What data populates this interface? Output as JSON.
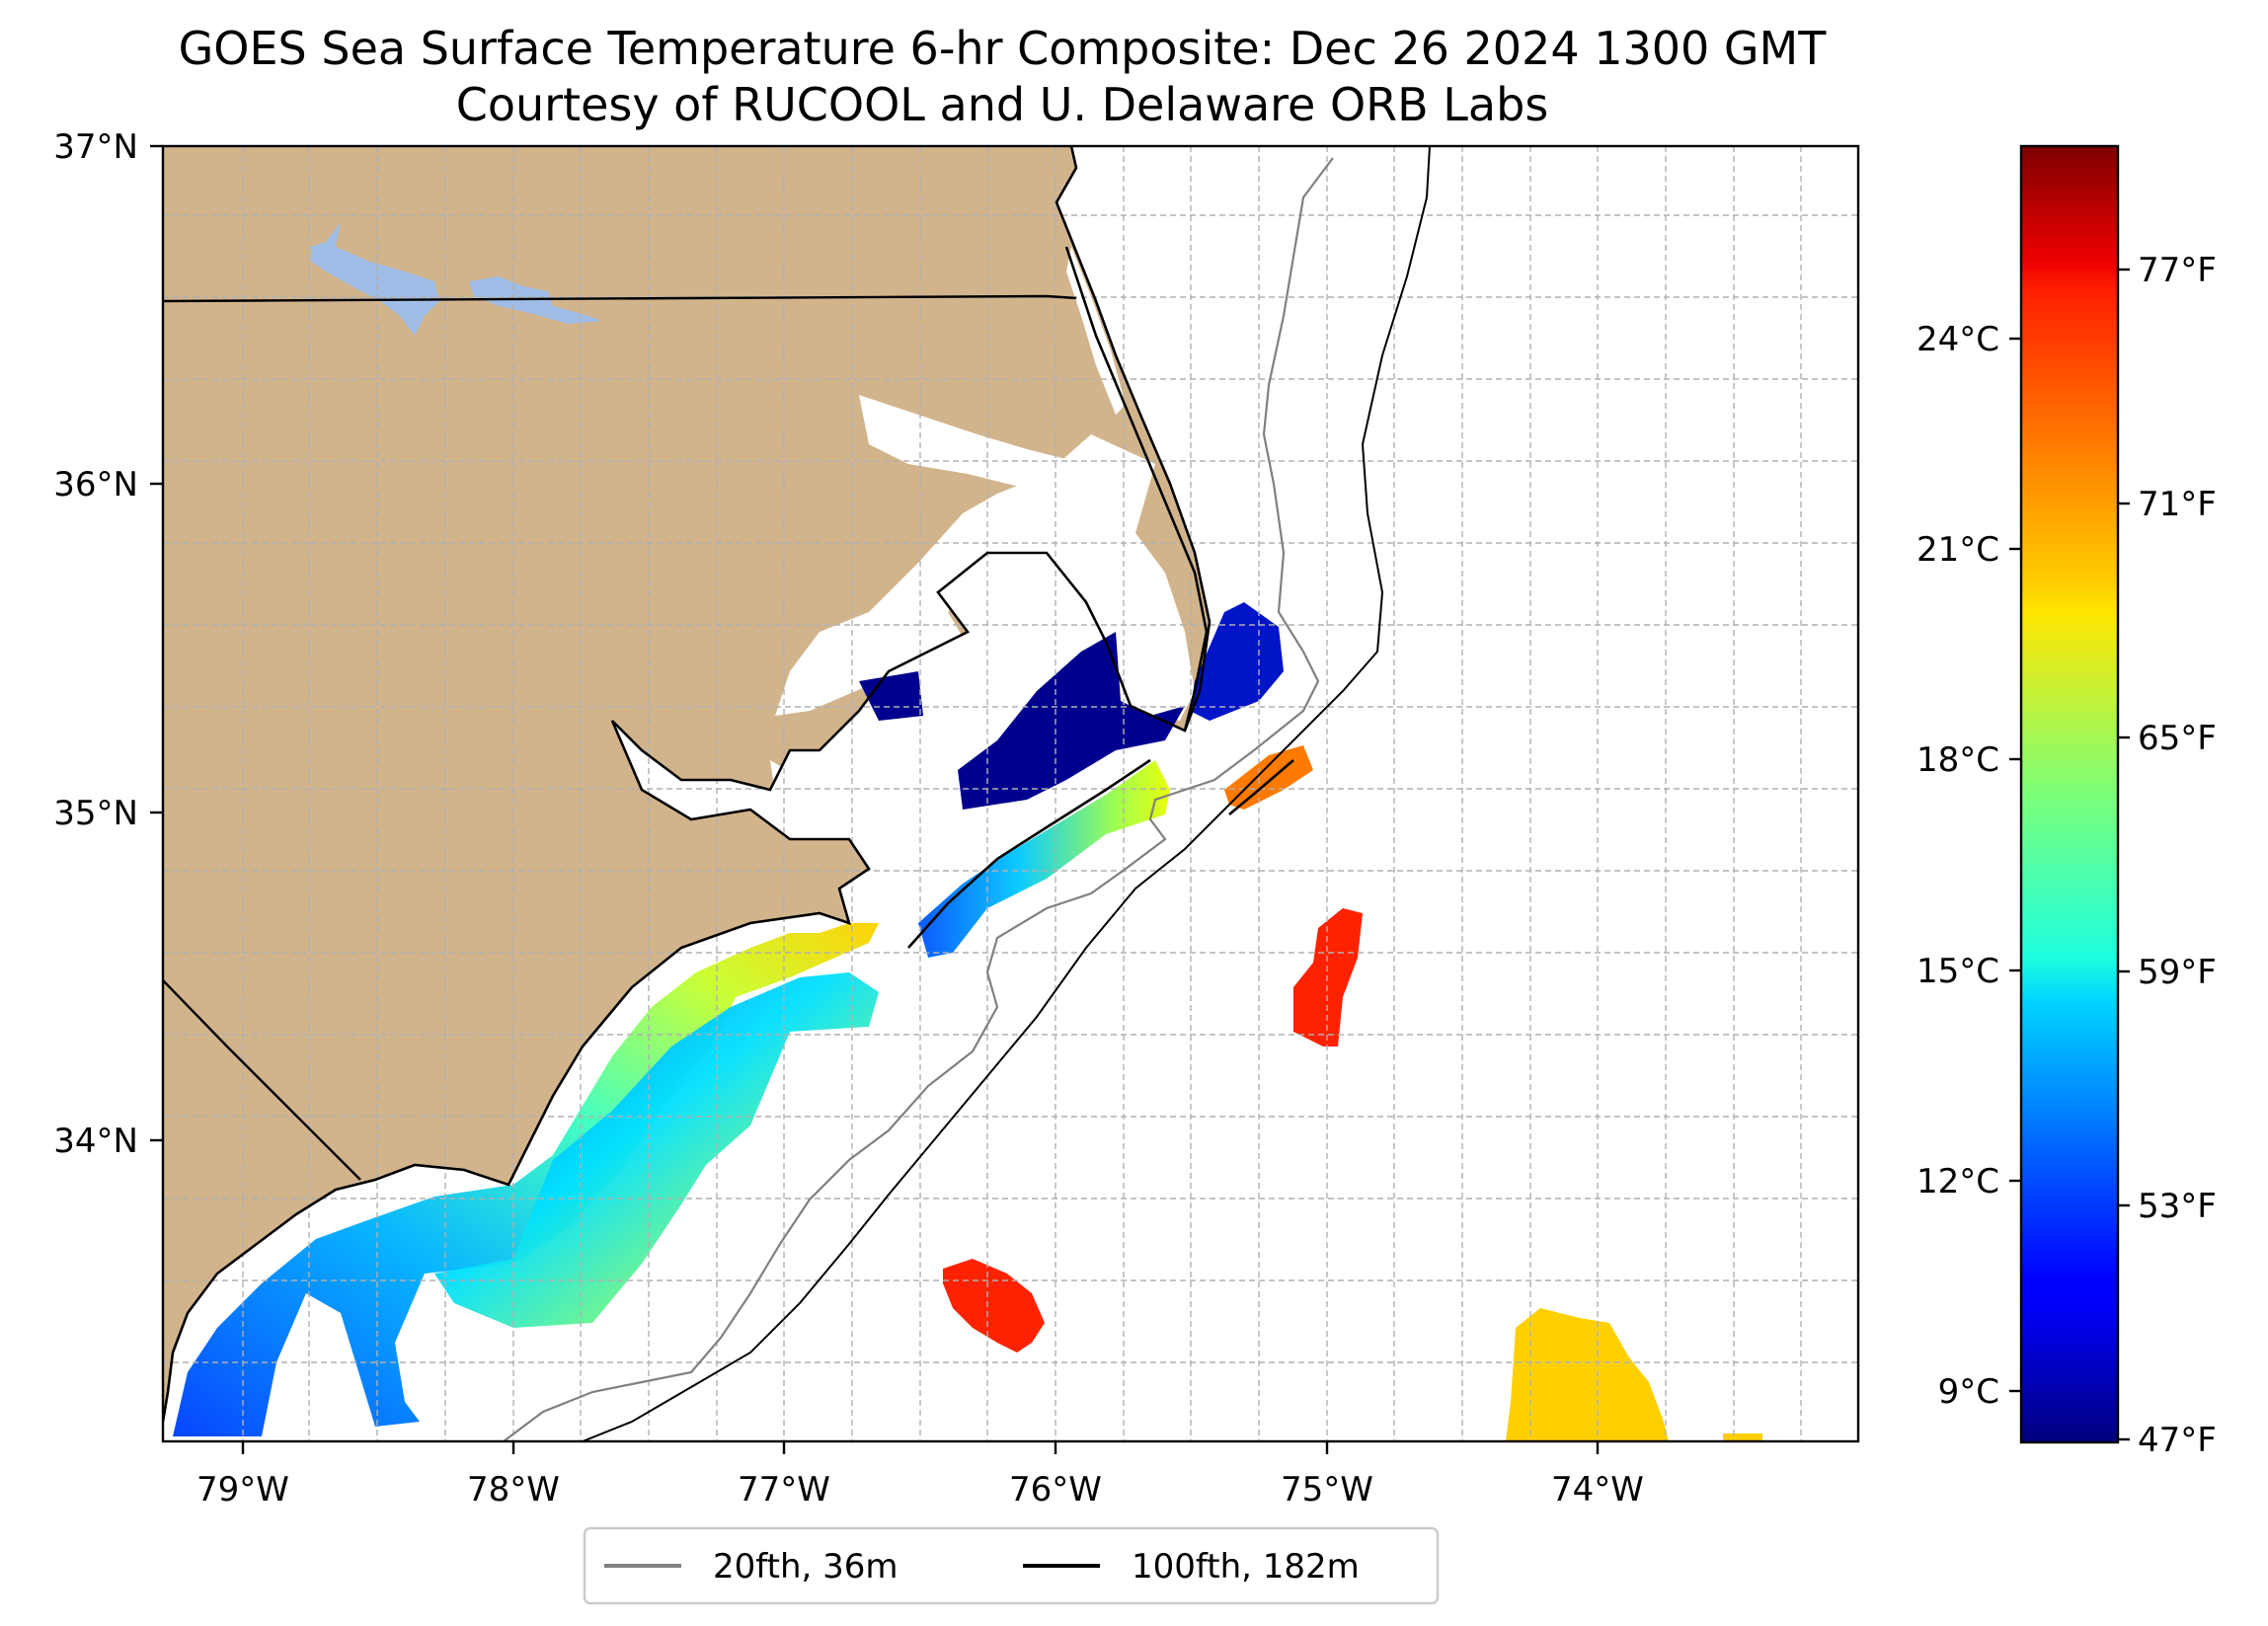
{
  "title": {
    "line1": "GOES Sea Surface Temperature 6-hr Composite: Dec 26 2024 1300 GMT",
    "line2": "Courtesy of RUCOOL and U. Delaware ORB Labs"
  },
  "map": {
    "lon_range": [
      -79.3,
      -73.0
    ],
    "lat_range": [
      33.1,
      37.0
    ],
    "lat_ticks": [
      {
        "value": 37,
        "label": "37°N"
      },
      {
        "value": 36,
        "label": "36°N"
      },
      {
        "value": 35,
        "label": "35°N"
      },
      {
        "value": 34,
        "label": "34°N"
      }
    ],
    "lon_ticks": [
      {
        "value": -79,
        "label": "79°W"
      },
      {
        "value": -78,
        "label": "78°W"
      },
      {
        "value": -77,
        "label": "77°W"
      },
      {
        "value": -76,
        "label": "76°W"
      },
      {
        "value": -75,
        "label": "75°W"
      },
      {
        "value": -74,
        "label": "74°W"
      }
    ],
    "land_color": "#d2b48c",
    "lake_color": "#9fbde6",
    "grid": true
  },
  "colorbar": {
    "colormap": "jet",
    "range_celsius": [
      8.2,
      26.6
    ],
    "celsius_ticks": [
      {
        "value": 9,
        "label": "9°C"
      },
      {
        "value": 12,
        "label": "12°C"
      },
      {
        "value": 15,
        "label": "15°C"
      },
      {
        "value": 18,
        "label": "18°C"
      },
      {
        "value": 21,
        "label": "21°C"
      },
      {
        "value": 24,
        "label": "24°C"
      }
    ],
    "fahrenheit_ticks": [
      {
        "value": 47,
        "label": "47°F"
      },
      {
        "value": 53,
        "label": "53°F"
      },
      {
        "value": 59,
        "label": "59°F"
      },
      {
        "value": 65,
        "label": "65°F"
      },
      {
        "value": 71,
        "label": "71°F"
      },
      {
        "value": 77,
        "label": "77°F"
      }
    ]
  },
  "legend": {
    "items": [
      {
        "label": "20fth, 36m",
        "color": "#808080"
      },
      {
        "label": "100fth, 182m",
        "color": "#000000"
      }
    ]
  },
  "sst_patches": [
    {
      "name": "albemarle-sound-patch",
      "temp_c": 8.4
    },
    {
      "name": "pamlico-sound-patch",
      "temp_c": 8.5
    },
    {
      "name": "hatteras-offshore-patch",
      "temp_c": 9.2
    },
    {
      "name": "hatteras-gulfstream-patch",
      "temp_c": 23.0
    },
    {
      "name": "offshore-warm-patch-east",
      "temp_c": 25.0
    },
    {
      "name": "offshore-warm-patch-south",
      "temp_c": 25.2
    },
    {
      "name": "southeast-patch",
      "temp_c": 21.0
    },
    {
      "name": "southeast-edge-patch",
      "temp_c": 21.3
    }
  ]
}
